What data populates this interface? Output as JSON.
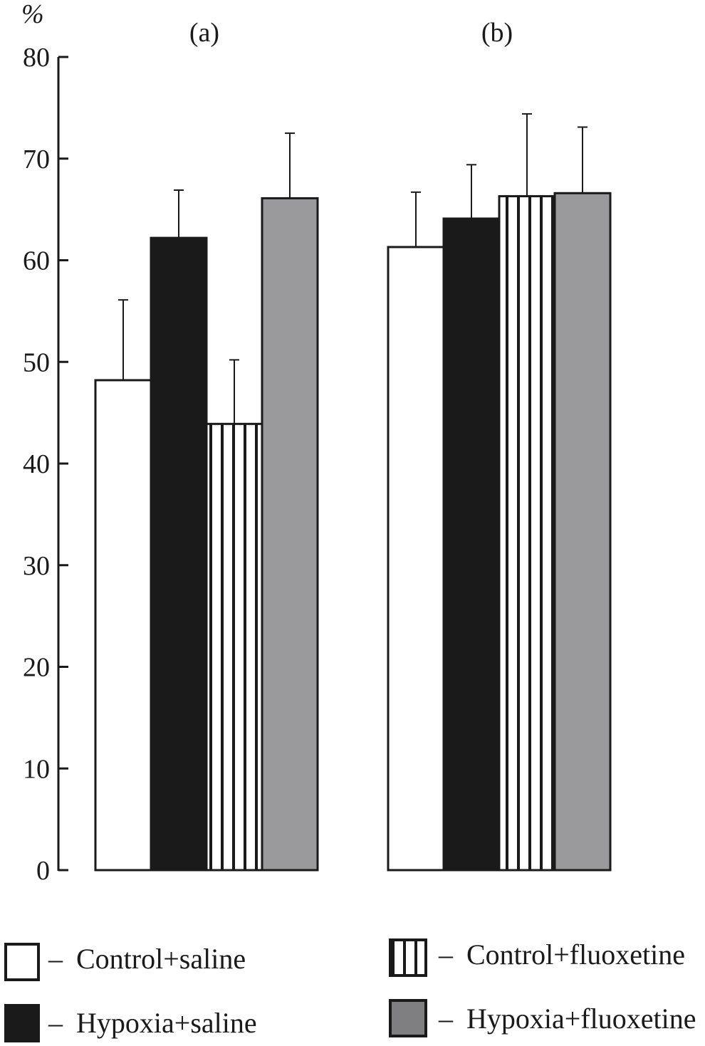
{
  "chart_data": {
    "type": "bar",
    "ylabel": "%",
    "ylim": [
      0,
      80
    ],
    "yticks": [
      "0",
      "10",
      "20",
      "30",
      "40",
      "50",
      "60",
      "70",
      "80"
    ],
    "grid": false,
    "legend_placement": "bottom",
    "panels": [
      "(a)",
      "(b)"
    ],
    "series": [
      {
        "name": "Control+saline",
        "pattern": "white",
        "values": [
          48.2,
          61.3
        ],
        "errors": [
          7.9,
          5.4
        ]
      },
      {
        "name": "Hypoxia+saline",
        "pattern": "black",
        "values": [
          62.2,
          64.1
        ],
        "errors": [
          4.7,
          5.3
        ]
      },
      {
        "name": "Control+fluoxetine",
        "pattern": "vertical-stripes",
        "values": [
          43.9,
          66.3
        ],
        "errors": [
          6.3,
          8.1
        ]
      },
      {
        "name": "Hypoxia+fluoxetine",
        "pattern": "gray",
        "values": [
          66.1,
          66.6
        ],
        "errors": [
          6.4,
          6.5
        ]
      }
    ],
    "legend_prefix": "–"
  },
  "colors": {
    "black": "#1a1a1a",
    "gray": "#9a9a9c",
    "white": "#ffffff",
    "legend_gray": "#7f7f81"
  }
}
